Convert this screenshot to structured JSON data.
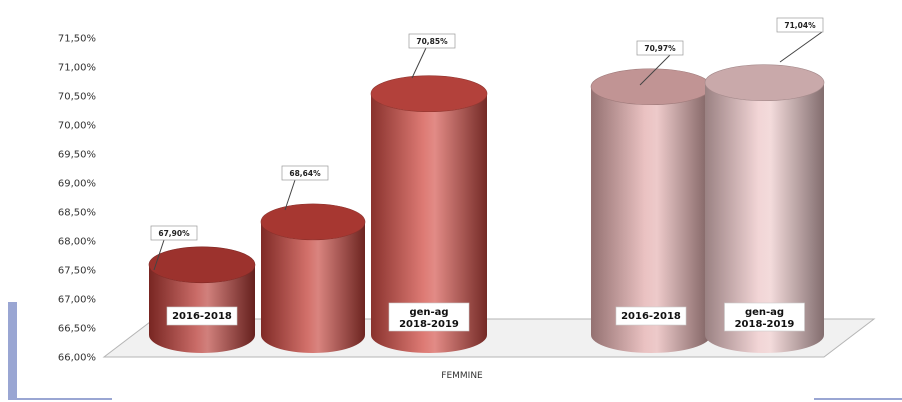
{
  "chart_data": {
    "type": "bar",
    "style": "3d-cylinder",
    "xlabel": "FEMMINE",
    "ylabel": "",
    "ylim": [
      66.0,
      71.5
    ],
    "y_ticks": [
      "66,00%",
      "66,50%",
      "67,00%",
      "67,50%",
      "68,00%",
      "68,50%",
      "69,00%",
      "69,50%",
      "70,00%",
      "70,50%",
      "71,00%",
      "71,50%"
    ],
    "grid": false,
    "legend": "none",
    "groups": [
      {
        "bars": [
          {
            "category": "2016-2018",
            "value": 67.9,
            "label": "67,90%",
            "color": "#b83b35"
          },
          {
            "category": "",
            "value": 68.64,
            "label": "68,64%",
            "color": "#c4413a"
          },
          {
            "category": "gen-ag\n2018-2019",
            "value": 70.85,
            "label": "70,85%",
            "color": "#d24d45"
          }
        ]
      },
      {
        "bars": [
          {
            "category": "2016-2018",
            "value": 70.97,
            "label": "70,97%",
            "color": "#e3aeae"
          },
          {
            "category": "gen-ag\n2018-2019",
            "value": 71.04,
            "label": "71,04%",
            "color": "#edc7c8"
          }
        ]
      }
    ]
  }
}
